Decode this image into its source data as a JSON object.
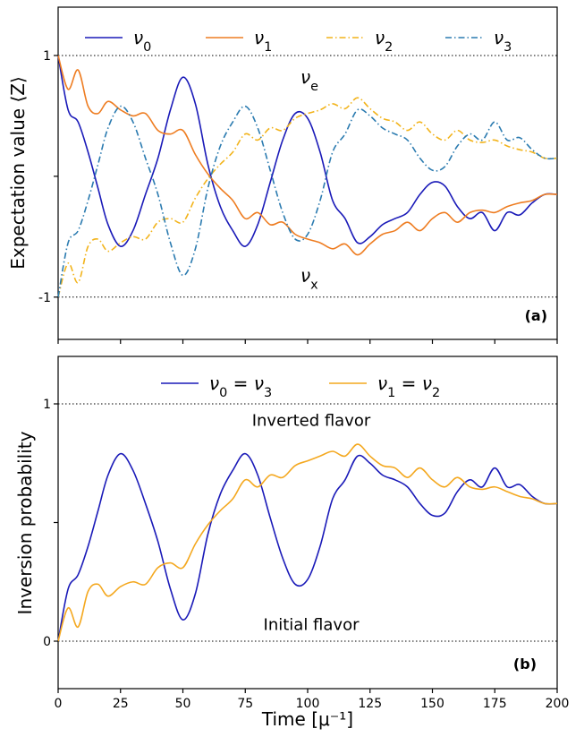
{
  "colors": {
    "nu0": "#1a1ab8",
    "nu1": "#ee7d22",
    "nu2": "#f2b31a",
    "nu3": "#2b7bb0",
    "nu12": "#f4a81f"
  },
  "chart_data": [
    {
      "type": "line",
      "panel_label": "(a)",
      "ylabel": "Expectation value ⟨Z⟩",
      "xlabel": "",
      "xlim": [
        0,
        200
      ],
      "ylim": [
        -1.35,
        1.4
      ],
      "x_ticks": [
        0,
        25,
        50,
        75,
        100,
        125,
        150,
        175,
        200
      ],
      "y_ticks": [
        {
          "value": 1,
          "label": "1"
        },
        {
          "value": 0,
          "label": ""
        },
        {
          "value": -1,
          "label": "-1"
        }
      ],
      "reference_lines": [
        1,
        -1
      ],
      "annotations": [
        {
          "text": "νe",
          "base": "ν",
          "sub": "e",
          "x": 100,
          "y": 0.82
        },
        {
          "text": "νx",
          "base": "ν",
          "sub": "x",
          "x": 100,
          "y": -0.82
        }
      ],
      "legend_position": "top",
      "series": [
        {
          "name": "ν0",
          "base": "ν",
          "sub": "0",
          "style": "solid",
          "color_key": "nu0",
          "x": [
            0,
            4,
            8,
            12,
            16,
            20,
            25,
            30,
            35,
            40,
            45,
            50,
            55,
            60,
            65,
            70,
            75,
            80,
            85,
            90,
            95,
            100,
            105,
            110,
            115,
            120,
            125,
            130,
            135,
            140,
            145,
            150,
            155,
            160,
            165,
            170,
            175,
            180,
            185,
            190,
            195,
            200
          ],
          "y": [
            1.0,
            0.55,
            0.45,
            0.2,
            -0.1,
            -0.4,
            -0.58,
            -0.45,
            -0.15,
            0.15,
            0.55,
            0.82,
            0.6,
            0.1,
            -0.25,
            -0.45,
            -0.58,
            -0.4,
            -0.05,
            0.3,
            0.52,
            0.48,
            0.2,
            -0.2,
            -0.35,
            -0.55,
            -0.5,
            -0.4,
            -0.35,
            -0.3,
            -0.15,
            -0.05,
            -0.08,
            -0.25,
            -0.35,
            -0.3,
            -0.45,
            -0.3,
            -0.32,
            -0.22,
            -0.15,
            -0.15
          ]
        },
        {
          "name": "ν1",
          "base": "ν",
          "sub": "1",
          "style": "solid",
          "color_key": "nu1",
          "x": [
            0,
            4,
            8,
            12,
            16,
            20,
            25,
            30,
            35,
            40,
            45,
            50,
            55,
            60,
            65,
            70,
            75,
            80,
            85,
            90,
            95,
            100,
            105,
            110,
            115,
            120,
            125,
            130,
            135,
            140,
            145,
            150,
            155,
            160,
            165,
            170,
            175,
            180,
            185,
            190,
            195,
            200
          ],
          "y": [
            1.0,
            0.72,
            0.88,
            0.58,
            0.52,
            0.62,
            0.55,
            0.5,
            0.52,
            0.38,
            0.35,
            0.38,
            0.18,
            0.02,
            -0.1,
            -0.2,
            -0.35,
            -0.3,
            -0.4,
            -0.38,
            -0.48,
            -0.52,
            -0.55,
            -0.6,
            -0.56,
            -0.65,
            -0.56,
            -0.48,
            -0.45,
            -0.38,
            -0.45,
            -0.35,
            -0.3,
            -0.38,
            -0.3,
            -0.28,
            -0.3,
            -0.25,
            -0.22,
            -0.2,
            -0.15,
            -0.15
          ]
        },
        {
          "name": "ν2",
          "base": "ν",
          "sub": "2",
          "style": "dashdot",
          "color_key": "nu2",
          "x": [
            0,
            4,
            8,
            12,
            16,
            20,
            25,
            30,
            35,
            40,
            45,
            50,
            55,
            60,
            65,
            70,
            75,
            80,
            85,
            90,
            95,
            100,
            105,
            110,
            115,
            120,
            125,
            130,
            135,
            140,
            145,
            150,
            155,
            160,
            165,
            170,
            175,
            180,
            185,
            190,
            195,
            200
          ],
          "y": [
            -1.0,
            -0.72,
            -0.88,
            -0.58,
            -0.52,
            -0.62,
            -0.55,
            -0.5,
            -0.52,
            -0.38,
            -0.35,
            -0.38,
            -0.18,
            -0.02,
            0.1,
            0.2,
            0.35,
            0.3,
            0.4,
            0.38,
            0.48,
            0.52,
            0.55,
            0.6,
            0.56,
            0.65,
            0.56,
            0.48,
            0.45,
            0.38,
            0.45,
            0.35,
            0.3,
            0.38,
            0.3,
            0.28,
            0.3,
            0.25,
            0.22,
            0.2,
            0.15,
            0.15
          ]
        },
        {
          "name": "ν3",
          "base": "ν",
          "sub": "3",
          "style": "dashdot",
          "color_key": "nu3",
          "x": [
            0,
            4,
            8,
            12,
            16,
            20,
            25,
            30,
            35,
            40,
            45,
            50,
            55,
            60,
            65,
            70,
            75,
            80,
            85,
            90,
            95,
            100,
            105,
            110,
            115,
            120,
            125,
            130,
            135,
            140,
            145,
            150,
            155,
            160,
            165,
            170,
            175,
            180,
            185,
            190,
            195,
            200
          ],
          "y": [
            -1.0,
            -0.55,
            -0.45,
            -0.2,
            0.1,
            0.4,
            0.58,
            0.45,
            0.15,
            -0.15,
            -0.55,
            -0.82,
            -0.6,
            -0.1,
            0.25,
            0.45,
            0.58,
            0.4,
            0.05,
            -0.3,
            -0.52,
            -0.48,
            -0.2,
            0.2,
            0.35,
            0.55,
            0.5,
            0.4,
            0.35,
            0.3,
            0.15,
            0.05,
            0.08,
            0.25,
            0.35,
            0.3,
            0.45,
            0.3,
            0.32,
            0.22,
            0.15,
            0.15
          ]
        }
      ]
    },
    {
      "type": "line",
      "panel_label": "(b)",
      "ylabel": "Inversion probability",
      "xlabel": "Time [μ⁻¹]",
      "xlim": [
        0,
        200
      ],
      "ylim": [
        -0.2,
        1.2
      ],
      "x_ticks": [
        0,
        25,
        50,
        75,
        100,
        125,
        150,
        175,
        200
      ],
      "y_ticks": [
        {
          "value": 1,
          "label": "1"
        },
        {
          "value": 0.5,
          "label": ""
        },
        {
          "value": 0,
          "label": "0"
        }
      ],
      "reference_lines": [
        1,
        0
      ],
      "annotations": [
        {
          "text": "Inverted flavor",
          "x": 100,
          "y": 0.93
        },
        {
          "text": "Initial flavor",
          "x": 100,
          "y": 0.07
        }
      ],
      "legend_position": "top",
      "series": [
        {
          "name": "ν0 = ν3",
          "base": "ν",
          "sub": "0",
          "rest": " = ",
          "base2": "ν",
          "sub2": "3",
          "style": "solid",
          "color_key": "nu0",
          "x": [
            0,
            4,
            8,
            12,
            16,
            20,
            25,
            30,
            35,
            40,
            45,
            50,
            55,
            60,
            65,
            70,
            75,
            80,
            85,
            90,
            95,
            100,
            105,
            110,
            115,
            120,
            125,
            130,
            135,
            140,
            145,
            150,
            155,
            160,
            165,
            170,
            175,
            180,
            185,
            190,
            195,
            200
          ],
          "y": [
            0.0,
            0.22,
            0.28,
            0.4,
            0.55,
            0.7,
            0.79,
            0.72,
            0.58,
            0.42,
            0.22,
            0.09,
            0.2,
            0.45,
            0.62,
            0.72,
            0.79,
            0.7,
            0.52,
            0.35,
            0.24,
            0.26,
            0.4,
            0.6,
            0.68,
            0.78,
            0.75,
            0.7,
            0.68,
            0.65,
            0.58,
            0.53,
            0.54,
            0.63,
            0.68,
            0.65,
            0.73,
            0.65,
            0.66,
            0.61,
            0.58,
            0.58
          ]
        },
        {
          "name": "ν1 = ν2",
          "base": "ν",
          "sub": "1",
          "rest": " = ",
          "base2": "ν",
          "sub2": "2",
          "style": "solid",
          "color_key": "nu12",
          "x": [
            0,
            4,
            8,
            12,
            16,
            20,
            25,
            30,
            35,
            40,
            45,
            50,
            55,
            60,
            65,
            70,
            75,
            80,
            85,
            90,
            95,
            100,
            105,
            110,
            115,
            120,
            125,
            130,
            135,
            140,
            145,
            150,
            155,
            160,
            165,
            170,
            175,
            180,
            185,
            190,
            195,
            200
          ],
          "y": [
            0.0,
            0.14,
            0.06,
            0.21,
            0.24,
            0.19,
            0.23,
            0.25,
            0.24,
            0.31,
            0.33,
            0.31,
            0.41,
            0.49,
            0.55,
            0.6,
            0.68,
            0.65,
            0.7,
            0.69,
            0.74,
            0.76,
            0.78,
            0.8,
            0.78,
            0.83,
            0.78,
            0.74,
            0.73,
            0.69,
            0.73,
            0.68,
            0.65,
            0.69,
            0.65,
            0.64,
            0.65,
            0.63,
            0.61,
            0.6,
            0.58,
            0.58
          ]
        }
      ]
    }
  ]
}
